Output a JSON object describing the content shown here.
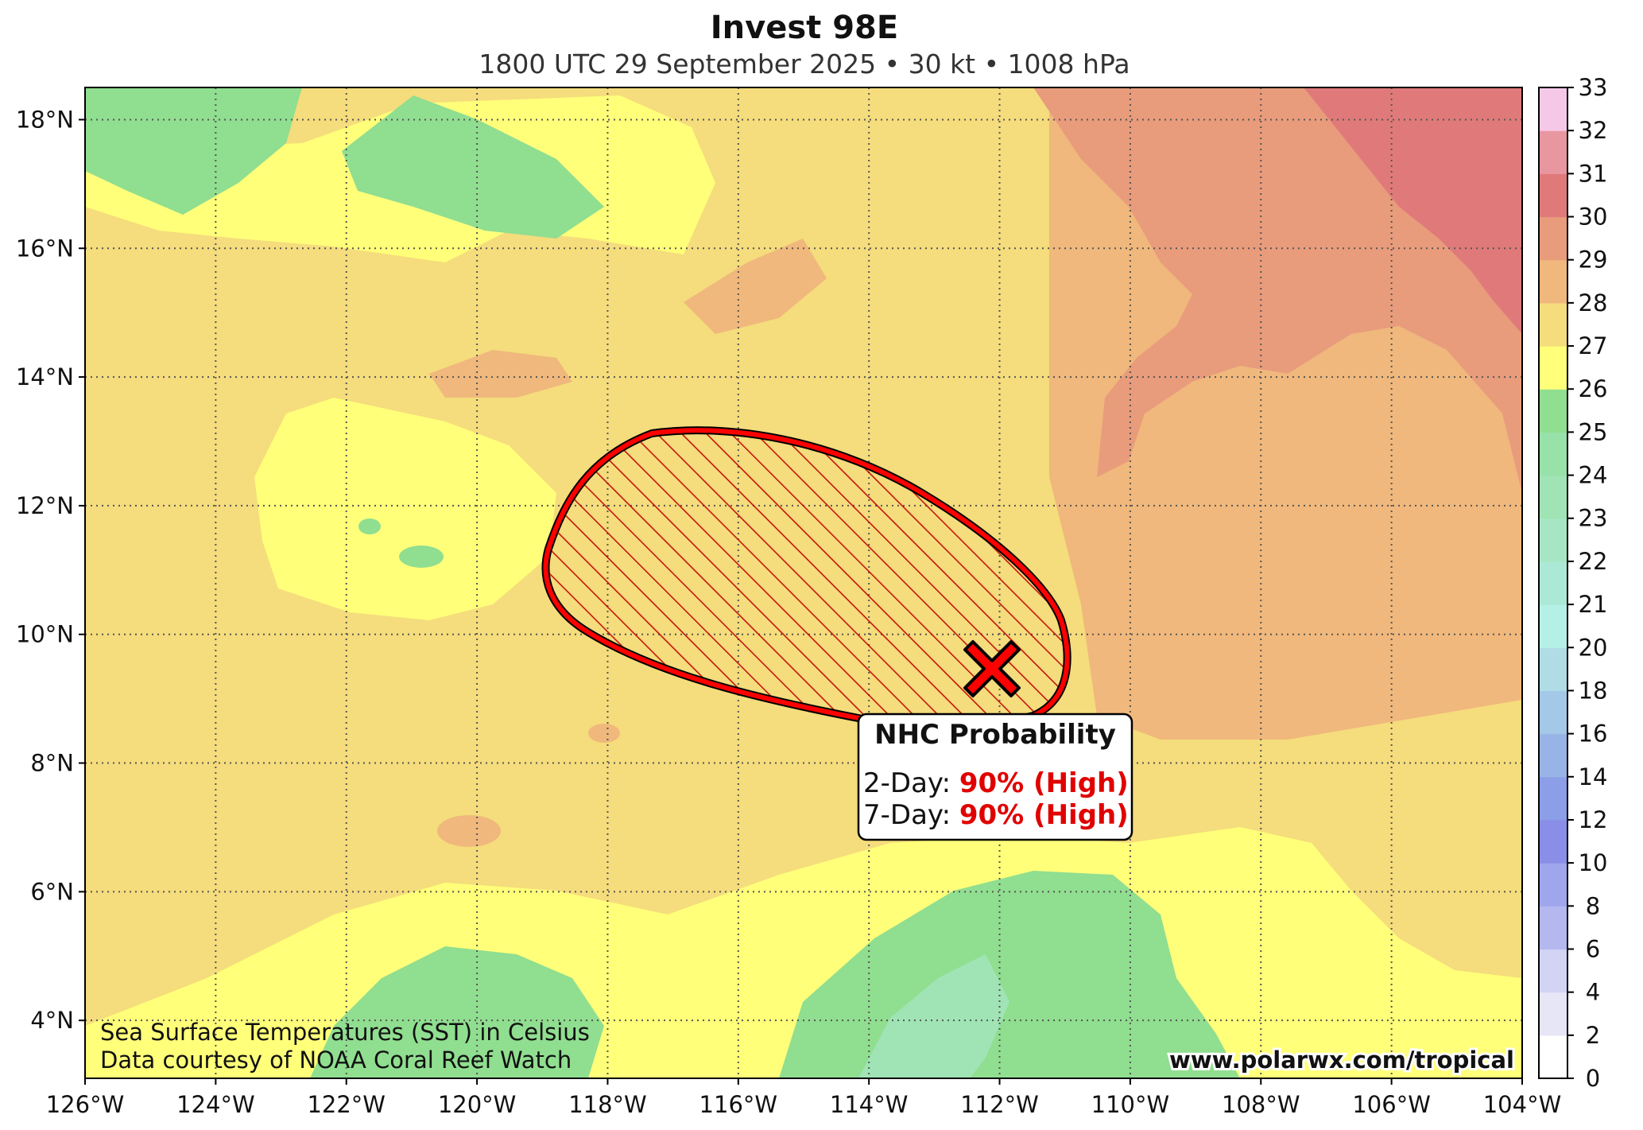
{
  "header": {
    "title": "Invest 98E",
    "subtitle": "1800 UTC 29 September 2025 • 30 kt • 1008 hPa"
  },
  "map": {
    "longitude_range_W": [
      126,
      104
    ],
    "latitude_range_N": [
      3.1,
      18.5
    ],
    "lon_ticks": [
      "126°W",
      "124°W",
      "122°W",
      "120°W",
      "118°W",
      "116°W",
      "114°W",
      "112°W",
      "110°W",
      "108°W",
      "106°W",
      "104°W"
    ],
    "lat_ticks": [
      "4°N",
      "6°N",
      "8°N",
      "10°N",
      "12°N",
      "14°N",
      "16°N",
      "18°N"
    ],
    "gridlines": "dotted",
    "field": "Sea surface temperature (°C)",
    "storm_center": {
      "lat": 9.5,
      "lon_W": 112.3,
      "symbol": "red-x-icon"
    },
    "probability_area": {
      "fill": "hatched",
      "outline_color": "#ff0000",
      "hatch_color": "#c00000",
      "approx_extent": {
        "lat": [
          8.4,
          13.1
        ],
        "lon_W": [
          111.2,
          119.3
        ]
      }
    },
    "sst_regions": {
      "cool_green": "south-central (~113–116°W, 3–6°N) and northwest (~120–126°W, 16–18°N)",
      "warm_red": "northeast (~104–110°W, 13–18°N)"
    }
  },
  "probability_box": {
    "title": "NHC Probability",
    "two_day_label": "2-Day:",
    "two_day_value": "90% (High)",
    "seven_day_label": "7-Day:",
    "seven_day_value": "90% (High)"
  },
  "colorbar": {
    "labels": [
      "0",
      "2",
      "4",
      "6",
      "8",
      "10",
      "12",
      "14",
      "16",
      "18",
      "20",
      "21",
      "22",
      "23",
      "24",
      "25",
      "26",
      "27",
      "28",
      "29",
      "30",
      "31",
      "32",
      "33"
    ],
    "colors": [
      "#ffffff",
      "#e6e6f7",
      "#d2d4f4",
      "#b4b8ef",
      "#a0a6ec",
      "#8a8ee6",
      "#8c9ee8",
      "#98b4e6",
      "#a4c8e8",
      "#b0dce6",
      "#b4f0e6",
      "#ace8d6",
      "#a6e6c4",
      "#a0e4b6",
      "#98e2aa",
      "#90de90",
      "#ffff7a",
      "#f5dc7c",
      "#f0b87c",
      "#e89c7c",
      "#e07a7a",
      "#e896a0",
      "#f5c8e8"
    ]
  },
  "credits": {
    "line1": "Sea Surface Temperatures (SST) in Celsius",
    "line2": "Data courtesy of NOAA Coral Reef Watch"
  },
  "url": "www.polarwx.com/tropical"
}
